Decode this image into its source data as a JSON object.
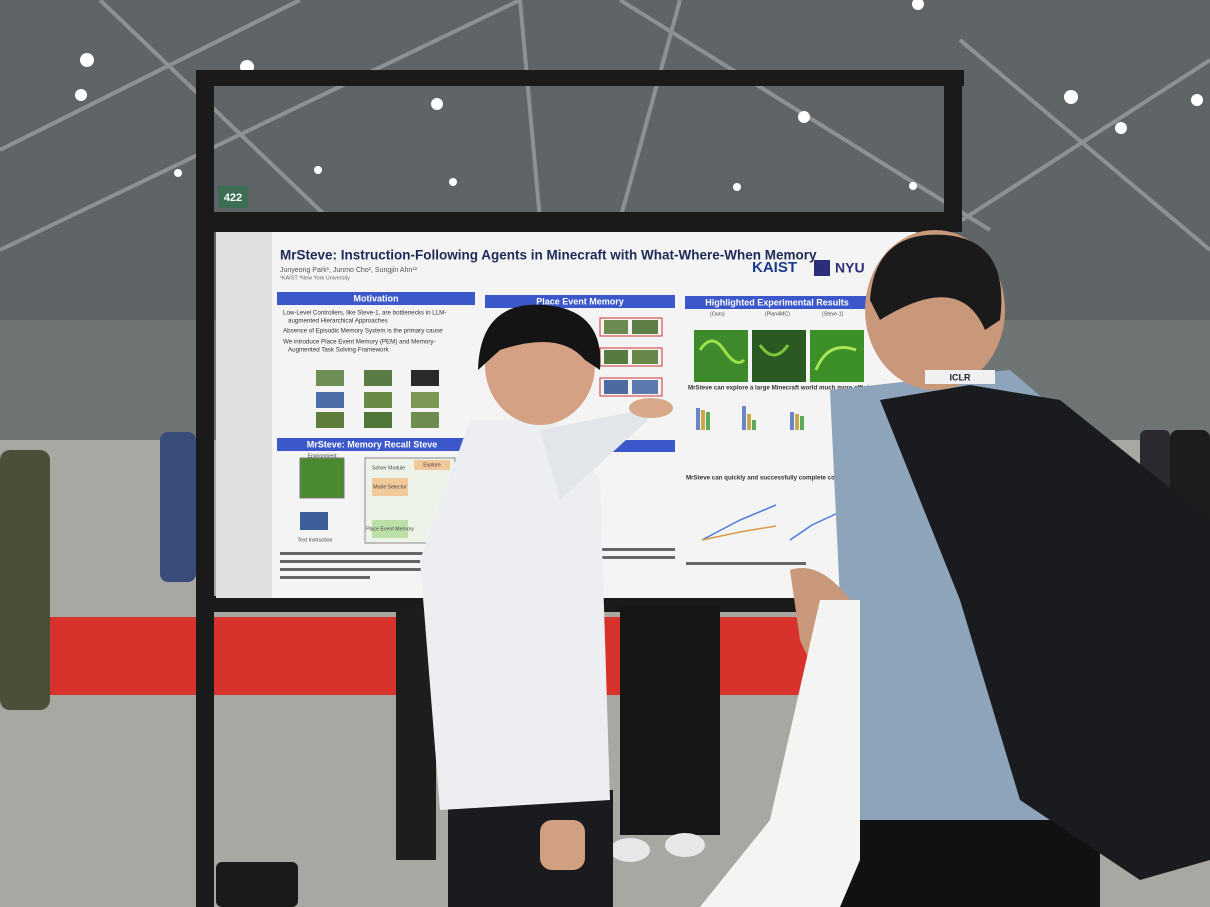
{
  "board_number": "422",
  "poster": {
    "title": "MrSteve: Instruction-Following Agents in Minecraft with What-Where-When Memory",
    "authors": "Junyeong Park¹, Junmo Cho¹, Sungjin Ahn¹²",
    "affiliations": "¹KAIST  ²New York University",
    "logos": [
      "KAIST",
      "NYU"
    ],
    "sections": [
      {
        "heading": "Motivation",
        "items": [
          "Low-Level Controllers, like Steve-1, are bottlenecks in LLM-",
          "augmented Hierarchical Approaches",
          "Absence of Episodic Memory System is the primary cause",
          "We introduce Place Event Memory (PEM) and Memory-",
          "Augmented Task Solving Framework"
        ]
      },
      {
        "heading": "Place Event Memory",
        "items": []
      },
      {
        "heading": "Highlighted Experimental Results",
        "items": [
          "(Ours)",
          "(Plan4MC)",
          "(Steve-1)",
          "MrSteve can explore a large Minecraft world much more efficiently",
          "MrSteve can quickly and successfully complete consecu"
        ]
      },
      {
        "heading": "MrSteve: Memory Recall Steve",
        "items": [
          "Environment",
          "Solver Module",
          "Mode Selector",
          "Explore",
          "Place Event Memory",
          "Text Instruction"
        ]
      }
    ]
  },
  "badge": "ICLR"
}
